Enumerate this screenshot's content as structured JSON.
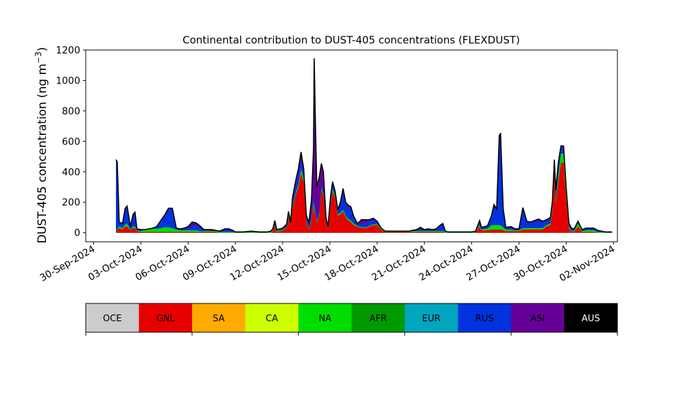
{
  "chart_data": {
    "type": "area",
    "title": "Continental contribution to DUST-405 concentrations (FLEXDUST)",
    "ylabel_main": "DUST-405 concentration (ng m",
    "ylabel_sup": "−3",
    "ylabel_close": ")",
    "xlabel": "",
    "x_start": "2024-09-30",
    "xlim": [
      "2024-09-29T12:00",
      "2024-11-02T06:00"
    ],
    "ylim": [
      -60,
      1200
    ],
    "grid": false,
    "xticks": [
      "30-Sep-2024",
      "03-Oct-2024",
      "06-Oct-2024",
      "09-Oct-2024",
      "12-Oct-2024",
      "15-Oct-2024",
      "18-Oct-2024",
      "21-Oct-2024",
      "24-Oct-2024",
      "27-Oct-2024",
      "30-Oct-2024",
      "02-Nov-2024"
    ],
    "xtick_dates": [
      "2024-09-30",
      "2024-10-03",
      "2024-10-06",
      "2024-10-09",
      "2024-10-12",
      "2024-10-15",
      "2024-10-18",
      "2024-10-21",
      "2024-10-24",
      "2024-10-27",
      "2024-10-30",
      "2024-11-02"
    ],
    "yticks": [
      0,
      200,
      400,
      600,
      800,
      1000,
      1200
    ],
    "legend": {
      "position": "bottom",
      "items": [
        {
          "name": "OCE",
          "color": "#cccccc",
          "text_color": "#000000"
        },
        {
          "name": "GNL",
          "color": "#e60000",
          "text_color": "#000000"
        },
        {
          "name": "SA",
          "color": "#ffaa00",
          "text_color": "#000000"
        },
        {
          "name": "CA",
          "color": "#ccff00",
          "text_color": "#000000"
        },
        {
          "name": "NA",
          "color": "#00dd00",
          "text_color": "#000000"
        },
        {
          "name": "AFR",
          "color": "#009900",
          "text_color": "#000000"
        },
        {
          "name": "EUR",
          "color": "#00a6bf",
          "text_color": "#000000"
        },
        {
          "name": "RUS",
          "color": "#0033dd",
          "text_color": "#000000"
        },
        {
          "name": "ASI",
          "color": "#660099",
          "text_color": "#000000"
        },
        {
          "name": "AUS",
          "color": "#000000",
          "text_color": "#ffffff"
        }
      ]
    },
    "series_keys": [
      "GNL",
      "NA",
      "EUR",
      "RUS",
      "ASI"
    ],
    "series_colors": {
      "GNL": "#e60000",
      "NA": "#00dd00",
      "EUR": "#00a6bf",
      "RUS": "#0033dd",
      "ASI": "#660099"
    },
    "data": [
      [
        "2024-10-01T10:00",
        0,
        0,
        0,
        480,
        0
      ],
      [
        "2024-10-01T12:00",
        20,
        5,
        0,
        440,
        0
      ],
      [
        "2024-10-01T15:00",
        30,
        10,
        0,
        30,
        0
      ],
      [
        "2024-10-01T20:00",
        20,
        10,
        0,
        30,
        0
      ],
      [
        "2024-10-02T00:00",
        40,
        10,
        5,
        105,
        0
      ],
      [
        "2024-10-02T03:00",
        40,
        15,
        5,
        115,
        0
      ],
      [
        "2024-10-02T08:00",
        15,
        5,
        0,
        20,
        0
      ],
      [
        "2024-10-02T12:00",
        30,
        10,
        0,
        80,
        0
      ],
      [
        "2024-10-02T15:00",
        30,
        10,
        0,
        95,
        0
      ],
      [
        "2024-10-02T18:00",
        10,
        5,
        0,
        10,
        0
      ],
      [
        "2024-10-03T00:00",
        5,
        5,
        0,
        10,
        0
      ],
      [
        "2024-10-03T06:00",
        5,
        15,
        0,
        0,
        0
      ],
      [
        "2024-10-03T12:00",
        5,
        20,
        0,
        0,
        0
      ],
      [
        "2024-10-03T18:00",
        5,
        20,
        0,
        5,
        0
      ],
      [
        "2024-10-04T00:00",
        5,
        20,
        0,
        15,
        0
      ],
      [
        "2024-10-04T12:00",
        5,
        30,
        0,
        80,
        0
      ],
      [
        "2024-10-04T18:00",
        5,
        30,
        0,
        125,
        0
      ],
      [
        "2024-10-05T00:00",
        5,
        25,
        0,
        130,
        0
      ],
      [
        "2024-10-05T06:00",
        5,
        15,
        0,
        10,
        0
      ],
      [
        "2024-10-05T12:00",
        5,
        10,
        0,
        10,
        0
      ],
      [
        "2024-10-05T18:00",
        5,
        10,
        0,
        10,
        5
      ],
      [
        "2024-10-06T00:00",
        5,
        10,
        0,
        15,
        10
      ],
      [
        "2024-10-06T06:00",
        5,
        10,
        0,
        35,
        20
      ],
      [
        "2024-10-06T12:00",
        5,
        10,
        0,
        35,
        15
      ],
      [
        "2024-10-06T18:00",
        5,
        5,
        0,
        25,
        10
      ],
      [
        "2024-10-07T00:00",
        5,
        5,
        0,
        5,
        5
      ],
      [
        "2024-10-07T06:00",
        5,
        5,
        0,
        5,
        5
      ],
      [
        "2024-10-07T12:00",
        5,
        5,
        0,
        5,
        5
      ],
      [
        "2024-10-07T18:00",
        5,
        5,
        0,
        0,
        5
      ],
      [
        "2024-10-08T00:00",
        0,
        5,
        0,
        0,
        5
      ],
      [
        "2024-10-08T08:00",
        0,
        5,
        0,
        10,
        10
      ],
      [
        "2024-10-08T14:00",
        0,
        5,
        0,
        10,
        10
      ],
      [
        "2024-10-08T20:00",
        0,
        5,
        0,
        5,
        5
      ],
      [
        "2024-10-09T00:00",
        0,
        5,
        0,
        0,
        0
      ],
      [
        "2024-10-09T12:00",
        0,
        5,
        0,
        0,
        0
      ],
      [
        "2024-10-10T00:00",
        0,
        5,
        0,
        0,
        5
      ],
      [
        "2024-10-10T12:00",
        0,
        5,
        0,
        0,
        0
      ],
      [
        "2024-10-11T00:00",
        0,
        5,
        0,
        0,
        0
      ],
      [
        "2024-10-11T06:00",
        0,
        5,
        0,
        0,
        5
      ],
      [
        "2024-10-11T09:00",
        10,
        5,
        0,
        0,
        10
      ],
      [
        "2024-10-11T12:00",
        45,
        5,
        0,
        10,
        20
      ],
      [
        "2024-10-11T15:00",
        5,
        5,
        0,
        5,
        5
      ],
      [
        "2024-10-11T20:00",
        10,
        5,
        0,
        5,
        5
      ],
      [
        "2024-10-12T00:00",
        15,
        5,
        0,
        5,
        5
      ],
      [
        "2024-10-12T06:00",
        30,
        5,
        0,
        10,
        10
      ],
      [
        "2024-10-12T09:00",
        100,
        5,
        0,
        25,
        10
      ],
      [
        "2024-10-12T12:00",
        40,
        5,
        0,
        10,
        10
      ],
      [
        "2024-10-12T15:00",
        160,
        10,
        0,
        40,
        20
      ],
      [
        "2024-10-12T20:00",
        250,
        10,
        5,
        50,
        30
      ],
      [
        "2024-10-13T00:00",
        300,
        15,
        5,
        60,
        40
      ],
      [
        "2024-10-13T04:00",
        390,
        20,
        10,
        60,
        50
      ],
      [
        "2024-10-13T08:00",
        330,
        20,
        10,
        30,
        30
      ],
      [
        "2024-10-13T12:00",
        60,
        10,
        5,
        20,
        20
      ],
      [
        "2024-10-13T16:00",
        20,
        5,
        0,
        10,
        30
      ],
      [
        "2024-10-13T20:00",
        80,
        10,
        0,
        30,
        100
      ],
      [
        "2024-10-13T23:00",
        180,
        20,
        0,
        40,
        310
      ],
      [
        "2024-10-14T00:00",
        150,
        20,
        0,
        40,
        935
      ],
      [
        "2024-10-14T02:00",
        120,
        10,
        0,
        30,
        540
      ],
      [
        "2024-10-14T04:00",
        60,
        10,
        0,
        20,
        210
      ],
      [
        "2024-10-14T08:00",
        120,
        10,
        0,
        20,
        220
      ],
      [
        "2024-10-14T11:00",
        280,
        15,
        0,
        25,
        135
      ],
      [
        "2024-10-14T14:00",
        240,
        10,
        0,
        20,
        130
      ],
      [
        "2024-10-14T18:00",
        60,
        5,
        0,
        10,
        25
      ],
      [
        "2024-10-14T21:00",
        20,
        5,
        0,
        5,
        10
      ],
      [
        "2024-10-15T01:00",
        180,
        10,
        0,
        30,
        20
      ],
      [
        "2024-10-15T04:00",
        270,
        15,
        0,
        30,
        20
      ],
      [
        "2024-10-15T08:00",
        230,
        10,
        0,
        20,
        10
      ],
      [
        "2024-10-15T12:00",
        110,
        10,
        0,
        20,
        10
      ],
      [
        "2024-10-15T16:00",
        120,
        10,
        0,
        50,
        20
      ],
      [
        "2024-10-15T20:00",
        140,
        10,
        0,
        120,
        20
      ],
      [
        "2024-10-16T00:00",
        100,
        10,
        0,
        80,
        10
      ],
      [
        "2024-10-16T04:00",
        80,
        10,
        0,
        80,
        10
      ],
      [
        "2024-10-16T08:00",
        70,
        10,
        0,
        80,
        10
      ],
      [
        "2024-10-16T12:00",
        50,
        10,
        0,
        40,
        10
      ],
      [
        "2024-10-16T18:00",
        40,
        5,
        0,
        10,
        5
      ],
      [
        "2024-10-17T00:00",
        30,
        5,
        0,
        20,
        30
      ],
      [
        "2024-10-17T06:00",
        30,
        5,
        0,
        30,
        20
      ],
      [
        "2024-10-17T12:00",
        40,
        5,
        0,
        30,
        10
      ],
      [
        "2024-10-17T18:00",
        50,
        5,
        0,
        30,
        10
      ],
      [
        "2024-10-18T00:00",
        50,
        5,
        0,
        15,
        5
      ],
      [
        "2024-10-18T06:00",
        20,
        5,
        0,
        5,
        0
      ],
      [
        "2024-10-18T12:00",
        5,
        5,
        0,
        0,
        0
      ],
      [
        "2024-10-19T00:00",
        5,
        5,
        0,
        0,
        0
      ],
      [
        "2024-10-19T12:00",
        5,
        5,
        0,
        0,
        0
      ],
      [
        "2024-10-20T00:00",
        5,
        5,
        0,
        0,
        0
      ],
      [
        "2024-10-20T12:00",
        5,
        5,
        0,
        5,
        5
      ],
      [
        "2024-10-20T18:00",
        5,
        5,
        0,
        15,
        10
      ],
      [
        "2024-10-21T00:00",
        5,
        5,
        0,
        5,
        5
      ],
      [
        "2024-10-21T06:00",
        5,
        5,
        0,
        10,
        5
      ],
      [
        "2024-10-21T12:00",
        5,
        5,
        0,
        5,
        5
      ],
      [
        "2024-10-21T18:00",
        5,
        5,
        0,
        10,
        5
      ],
      [
        "2024-10-22T00:00",
        5,
        5,
        0,
        30,
        10
      ],
      [
        "2024-10-22T04:00",
        5,
        5,
        0,
        45,
        5
      ],
      [
        "2024-10-22T08:00",
        0,
        5,
        0,
        0,
        5
      ],
      [
        "2024-10-22T12:00",
        0,
        5,
        0,
        0,
        0
      ],
      [
        "2024-10-23T00:00",
        0,
        5,
        0,
        0,
        0
      ],
      [
        "2024-10-23T12:00",
        0,
        5,
        0,
        0,
        0
      ],
      [
        "2024-10-24T00:00",
        0,
        5,
        0,
        0,
        0
      ],
      [
        "2024-10-24T06:00",
        5,
        5,
        0,
        0,
        0
      ],
      [
        "2024-10-24T12:00",
        40,
        10,
        0,
        20,
        10
      ],
      [
        "2024-10-24T15:00",
        15,
        5,
        0,
        10,
        5
      ],
      [
        "2024-10-24T20:00",
        15,
        10,
        0,
        10,
        5
      ],
      [
        "2024-10-25T00:00",
        15,
        10,
        0,
        15,
        5
      ],
      [
        "2024-10-25T06:00",
        20,
        30,
        0,
        50,
        10
      ],
      [
        "2024-10-25T10:00",
        20,
        30,
        0,
        130,
        5
      ],
      [
        "2024-10-25T14:00",
        20,
        30,
        0,
        100,
        5
      ],
      [
        "2024-10-25T18:00",
        20,
        30,
        0,
        580,
        10
      ],
      [
        "2024-10-25T20:00",
        20,
        30,
        0,
        595,
        5
      ],
      [
        "2024-10-26T00:00",
        15,
        20,
        0,
        120,
        5
      ],
      [
        "2024-10-26T04:00",
        10,
        10,
        0,
        10,
        5
      ],
      [
        "2024-10-26T12:00",
        10,
        10,
        0,
        15,
        5
      ],
      [
        "2024-10-26T18:00",
        10,
        5,
        0,
        5,
        5
      ],
      [
        "2024-10-27T00:00",
        10,
        5,
        0,
        5,
        5
      ],
      [
        "2024-10-27T06:00",
        20,
        10,
        0,
        130,
        5
      ],
      [
        "2024-10-27T12:00",
        20,
        10,
        0,
        40,
        5
      ],
      [
        "2024-10-27T18:00",
        20,
        10,
        0,
        35,
        5
      ],
      [
        "2024-10-28T00:00",
        20,
        10,
        0,
        40,
        10
      ],
      [
        "2024-10-28T06:00",
        20,
        10,
        0,
        50,
        10
      ],
      [
        "2024-10-28T12:00",
        20,
        10,
        0,
        40,
        5
      ],
      [
        "2024-10-28T18:00",
        40,
        10,
        0,
        30,
        5
      ],
      [
        "2024-10-29T00:00",
        50,
        10,
        0,
        35,
        5
      ],
      [
        "2024-10-29T03:00",
        150,
        20,
        0,
        30,
        10
      ],
      [
        "2024-10-29T06:00",
        400,
        10,
        0,
        50,
        20
      ],
      [
        "2024-10-29T08:00",
        190,
        20,
        0,
        50,
        20
      ],
      [
        "2024-10-29T12:00",
        330,
        40,
        0,
        70,
        20
      ],
      [
        "2024-10-29T16:00",
        460,
        60,
        0,
        40,
        10
      ],
      [
        "2024-10-29T20:00",
        460,
        60,
        0,
        40,
        10
      ],
      [
        "2024-10-30T00:00",
        220,
        30,
        0,
        40,
        5
      ],
      [
        "2024-10-30T04:00",
        30,
        10,
        0,
        20,
        5
      ],
      [
        "2024-10-30T08:00",
        5,
        5,
        0,
        15,
        5
      ],
      [
        "2024-10-30T12:00",
        5,
        5,
        0,
        10,
        5
      ],
      [
        "2024-10-30T18:00",
        40,
        20,
        0,
        10,
        5
      ],
      [
        "2024-10-31T00:00",
        5,
        5,
        0,
        5,
        5
      ],
      [
        "2024-10-31T06:00",
        5,
        10,
        0,
        10,
        5
      ],
      [
        "2024-10-31T12:00",
        5,
        10,
        0,
        10,
        5
      ],
      [
        "2024-10-31T18:00",
        5,
        10,
        0,
        10,
        5
      ],
      [
        "2024-11-01T00:00",
        0,
        5,
        0,
        5,
        5
      ],
      [
        "2024-11-01T06:00",
        0,
        5,
        0,
        0,
        5
      ],
      [
        "2024-11-01T12:00",
        0,
        5,
        0,
        0,
        0
      ],
      [
        "2024-11-01T22:00",
        0,
        5,
        0,
        0,
        0
      ]
    ]
  }
}
